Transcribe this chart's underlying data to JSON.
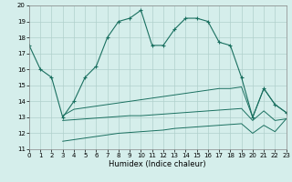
{
  "main_x": [
    0,
    1,
    2,
    3,
    4,
    5,
    6,
    7,
    8,
    9,
    10,
    11,
    12,
    13,
    14,
    15,
    16,
    17,
    18,
    19,
    20,
    21,
    22,
    23
  ],
  "main_y": [
    17.5,
    16.0,
    15.5,
    13.0,
    14.0,
    15.5,
    16.2,
    18.0,
    19.0,
    19.2,
    19.7,
    17.5,
    17.5,
    18.5,
    19.2,
    19.2,
    19.0,
    17.7,
    17.5,
    15.5,
    13.0,
    14.8,
    13.8,
    13.3
  ],
  "line2_x": [
    3,
    4,
    5,
    6,
    7,
    8,
    9,
    10,
    11,
    12,
    13,
    14,
    15,
    16,
    17,
    18,
    19,
    20,
    21,
    22,
    23
  ],
  "line2_y": [
    13.1,
    13.5,
    13.6,
    13.7,
    13.8,
    13.9,
    14.0,
    14.1,
    14.2,
    14.3,
    14.4,
    14.5,
    14.6,
    14.7,
    14.8,
    14.8,
    14.9,
    13.0,
    14.8,
    13.8,
    13.3
  ],
  "line3_x": [
    3,
    4,
    5,
    6,
    7,
    8,
    9,
    10,
    11,
    12,
    13,
    14,
    15,
    16,
    17,
    18,
    19,
    20,
    21,
    22,
    23
  ],
  "line3_y": [
    12.8,
    12.85,
    12.9,
    12.95,
    13.0,
    13.05,
    13.1,
    13.1,
    13.15,
    13.2,
    13.25,
    13.3,
    13.35,
    13.4,
    13.45,
    13.5,
    13.55,
    12.8,
    13.4,
    12.8,
    12.9
  ],
  "line4_x": [
    3,
    4,
    5,
    6,
    7,
    8,
    9,
    10,
    11,
    12,
    13,
    14,
    15,
    16,
    17,
    18,
    19,
    20,
    21,
    22,
    23
  ],
  "line4_y": [
    11.5,
    11.6,
    11.7,
    11.8,
    11.9,
    12.0,
    12.05,
    12.1,
    12.15,
    12.2,
    12.3,
    12.35,
    12.4,
    12.45,
    12.5,
    12.55,
    12.6,
    12.0,
    12.5,
    12.1,
    12.9
  ],
  "line_color": "#1a7060",
  "bg_color": "#d5eeeb",
  "grid_color": "#b0d0cc",
  "xlabel": "Humidex (Indice chaleur)",
  "xlim": [
    0,
    23
  ],
  "ylim": [
    11,
    20
  ],
  "xticks": [
    0,
    1,
    2,
    3,
    4,
    5,
    6,
    7,
    8,
    9,
    10,
    11,
    12,
    13,
    14,
    15,
    16,
    17,
    18,
    19,
    20,
    21,
    22,
    23
  ],
  "yticks": [
    11,
    12,
    13,
    14,
    15,
    16,
    17,
    18,
    19,
    20
  ],
  "figsize": [
    3.2,
    2.0
  ],
  "dpi": 100
}
